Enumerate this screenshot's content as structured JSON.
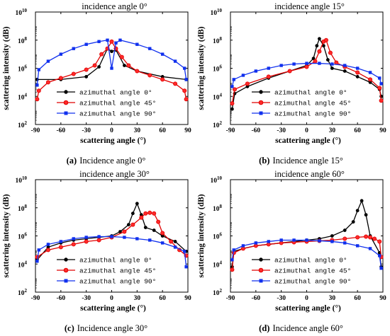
{
  "chart_data": [
    {
      "type": "line",
      "title": "incidence angle 0°",
      "caption_label": "(a)",
      "caption_text": "Incidence angle 0°",
      "xlabel": "scattering angle (°)",
      "ylabel": "scattering intensity (dB)",
      "xlim": [
        -90,
        90
      ],
      "xticks": [
        -90,
        -60,
        -30,
        0,
        30,
        60,
        90
      ],
      "ylim_log10": [
        2,
        10
      ],
      "y_scale": "log",
      "yticks": [
        "10",
        "10",
        "10",
        "10",
        "10"
      ],
      "ytick_exponents": [
        "2",
        "4",
        "6",
        "8",
        "10"
      ],
      "legend_position": "bottom-center",
      "series": [
        {
          "name": "azimuthal angle 0°",
          "color": "#000000",
          "marker": "circle",
          "x": [
            -88,
            -60,
            -30,
            -15,
            -5,
            0,
            5,
            15,
            30,
            60,
            88
          ],
          "y_log10": [
            5.2,
            5.2,
            5.4,
            6.1,
            7.4,
            7.2,
            7.3,
            6.2,
            5.8,
            5.4,
            5.2
          ]
        },
        {
          "name": "azimuthal angle 45°",
          "color": "#e00000",
          "marker": "circle",
          "x": [
            -88,
            -86,
            -75,
            -60,
            -45,
            -30,
            -20,
            -12,
            -5,
            0,
            5,
            12,
            20,
            30,
            45,
            60,
            75,
            86,
            88
          ],
          "y_log10": [
            3.8,
            4.4,
            5.0,
            5.3,
            5.6,
            5.9,
            6.2,
            7.0,
            7.4,
            7.9,
            7.4,
            6.8,
            6.2,
            5.8,
            5.5,
            5.2,
            4.9,
            4.4,
            3.8
          ]
        },
        {
          "name": "azimuthal angle 90°",
          "color": "#1030ee",
          "marker": "square",
          "x": [
            -88,
            -86,
            -75,
            -60,
            -45,
            -30,
            -15,
            -5,
            0,
            5,
            10,
            30,
            45,
            60,
            75,
            86,
            88
          ],
          "y_log10": [
            4.8,
            5.9,
            6.5,
            7.0,
            7.4,
            7.7,
            7.9,
            8.0,
            6.0,
            7.8,
            8.0,
            7.7,
            7.4,
            7.0,
            6.5,
            6.0,
            5.2
          ]
        }
      ]
    },
    {
      "type": "line",
      "title": "incidence angle 15°",
      "caption_label": "(b)",
      "caption_text": "Incidence angle 15°",
      "xlabel": "scattering angle (°)",
      "ylabel": "scattering intensity (dB)",
      "xlim": [
        -90,
        90
      ],
      "xticks": [
        -90,
        -60,
        -30,
        0,
        30,
        60,
        90
      ],
      "ylim_log10": [
        2,
        10
      ],
      "y_scale": "log",
      "yticks": [
        "10",
        "10",
        "10",
        "10",
        "10"
      ],
      "ytick_exponents": [
        "2",
        "4",
        "6",
        "8",
        "10"
      ],
      "legend_position": "bottom-center",
      "series": [
        {
          "name": "azimuthal angle 0°",
          "color": "#000000",
          "marker": "circle",
          "x": [
            -88,
            -85,
            -70,
            -45,
            -20,
            0,
            8,
            12,
            15,
            20,
            25,
            30,
            45,
            60,
            75,
            86,
            88
          ],
          "y_log10": [
            3.1,
            4.2,
            4.7,
            5.3,
            5.8,
            6.2,
            6.7,
            7.6,
            8.1,
            7.6,
            6.6,
            6.0,
            5.8,
            5.4,
            5.0,
            4.5,
            4.0
          ]
        },
        {
          "name": "azimuthal angle 45°",
          "color": "#e00000",
          "marker": "circle",
          "x": [
            -88,
            -85,
            -70,
            -45,
            -20,
            0,
            10,
            15,
            20,
            23,
            28,
            35,
            45,
            60,
            75,
            86,
            88
          ],
          "y_log10": [
            3.5,
            4.5,
            4.9,
            5.4,
            5.8,
            6.1,
            6.5,
            7.2,
            7.9,
            8.0,
            7.1,
            6.4,
            6.1,
            5.7,
            5.2,
            4.6,
            3.7
          ]
        },
        {
          "name": "azimuthal angle 90°",
          "color": "#1030ee",
          "marker": "square",
          "x": [
            -88,
            -86,
            -75,
            -60,
            -45,
            -30,
            -15,
            0,
            15,
            30,
            45,
            60,
            75,
            86,
            88
          ],
          "y_log10": [
            4.7,
            5.2,
            5.5,
            5.8,
            6.0,
            6.2,
            6.3,
            6.35,
            6.35,
            6.3,
            6.2,
            6.0,
            5.7,
            5.3,
            4.9
          ]
        }
      ]
    },
    {
      "type": "line",
      "title": "incidence angle 30°",
      "caption_label": "(c)",
      "caption_text": "Incidence angle 30°",
      "xlabel": "scattering angle (°)",
      "ylabel": "scattering intensity (dB)",
      "xlim": [
        -90,
        90
      ],
      "xticks": [
        -90,
        -60,
        -30,
        0,
        30,
        60,
        90
      ],
      "ylim_log10": [
        2,
        10
      ],
      "y_scale": "log",
      "yticks": [
        "10",
        "10",
        "10",
        "10",
        "10"
      ],
      "ytick_exponents": [
        "2",
        "4",
        "6",
        "8",
        "10"
      ],
      "legend_position": "bottom-center",
      "series": [
        {
          "name": "azimuthal angle 0°",
          "color": "#000000",
          "marker": "circle",
          "x": [
            -88,
            -75,
            -60,
            -45,
            -30,
            -15,
            0,
            10,
            20,
            25,
            30,
            35,
            40,
            50,
            60,
            75,
            88
          ],
          "y_log10": [
            4.3,
            5.2,
            5.5,
            5.7,
            5.8,
            5.9,
            6.0,
            6.3,
            6.8,
            7.6,
            8.3,
            7.5,
            6.6,
            6.4,
            6.0,
            5.6,
            4.9
          ]
        },
        {
          "name": "azimuthal angle 45°",
          "color": "#e00000",
          "marker": "circle",
          "x": [
            -88,
            -75,
            -60,
            -45,
            -30,
            -15,
            0,
            15,
            25,
            35,
            40,
            45,
            50,
            55,
            60,
            70,
            80,
            88
          ],
          "y_log10": [
            4.5,
            5.0,
            5.2,
            5.4,
            5.6,
            5.7,
            5.9,
            6.3,
            6.8,
            7.3,
            7.6,
            7.65,
            7.6,
            7.0,
            6.2,
            5.6,
            5.0,
            4.6
          ]
        },
        {
          "name": "azimuthal angle 90°",
          "color": "#1030ee",
          "marker": "square",
          "x": [
            -88,
            -86,
            -75,
            -60,
            -45,
            -30,
            -15,
            0,
            15,
            30,
            45,
            60,
            75,
            86,
            88
          ],
          "y_log10": [
            4.2,
            5.0,
            5.4,
            5.6,
            5.8,
            5.9,
            5.95,
            5.95,
            5.9,
            5.8,
            5.7,
            5.5,
            5.2,
            4.9,
            3.8
          ]
        }
      ]
    },
    {
      "type": "line",
      "title": "incidence angle 60°",
      "caption_label": "(d)",
      "caption_text": "Incidence angle 60°",
      "xlabel": "scattering angle (°)",
      "ylabel": "scattering intensity (dB)",
      "xlim": [
        -90,
        90
      ],
      "xticks": [
        -90,
        -60,
        -30,
        0,
        30,
        60,
        90
      ],
      "ylim_log10": [
        2,
        10
      ],
      "y_scale": "log",
      "yticks": [
        "10",
        "10",
        "10",
        "10",
        "10"
      ],
      "ytick_exponents": [
        "2",
        "4",
        "6",
        "8",
        "10"
      ],
      "legend_position": "bottom-center",
      "series": [
        {
          "name": "azimuthal angle 0°",
          "color": "#000000",
          "marker": "circle",
          "x": [
            -88,
            -86,
            -75,
            -60,
            -45,
            -30,
            -15,
            0,
            15,
            30,
            45,
            55,
            60,
            65,
            70,
            75,
            86,
            88
          ],
          "y_log10": [
            3.8,
            4.9,
            5.1,
            5.3,
            5.4,
            5.5,
            5.6,
            5.7,
            5.8,
            6.0,
            6.4,
            7.0,
            7.8,
            8.5,
            7.5,
            6.0,
            4.8,
            3.8
          ]
        },
        {
          "name": "azimuthal angle 45°",
          "color": "#e00000",
          "marker": "circle",
          "x": [
            -88,
            -86,
            -75,
            -60,
            -45,
            -30,
            -15,
            0,
            15,
            30,
            45,
            60,
            70,
            75,
            80,
            86,
            88
          ],
          "y_log10": [
            3.6,
            4.8,
            5.1,
            5.3,
            5.4,
            5.5,
            5.55,
            5.6,
            5.65,
            5.7,
            5.8,
            5.9,
            5.95,
            5.9,
            5.8,
            5.6,
            4.5
          ]
        },
        {
          "name": "azimuthal angle 90°",
          "color": "#1030ee",
          "marker": "square",
          "x": [
            -88,
            -86,
            -75,
            -60,
            -45,
            -30,
            -15,
            0,
            15,
            30,
            45,
            60,
            75,
            86,
            88
          ],
          "y_log10": [
            4.3,
            5.0,
            5.3,
            5.5,
            5.6,
            5.7,
            5.7,
            5.7,
            5.65,
            5.6,
            5.5,
            5.3,
            5.1,
            4.6,
            3.7
          ]
        }
      ]
    }
  ]
}
